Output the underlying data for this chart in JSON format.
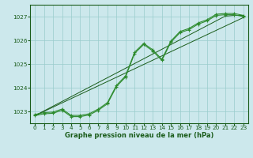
{
  "x": [
    0,
    1,
    2,
    3,
    4,
    5,
    6,
    7,
    8,
    9,
    10,
    11,
    12,
    13,
    14,
    15,
    16,
    17,
    18,
    19,
    20,
    21,
    22,
    23
  ],
  "wavy1": [
    1022.82,
    1022.9,
    1022.92,
    1023.05,
    1022.78,
    1022.78,
    1022.85,
    1023.05,
    1023.32,
    1024.05,
    1024.45,
    1025.45,
    1025.82,
    1025.55,
    1025.15,
    1025.92,
    1026.32,
    1026.45,
    1026.68,
    1026.82,
    1027.05,
    1027.08,
    1027.08,
    1027.0
  ],
  "straight1": [
    1022.82,
    1023.0,
    1023.18,
    1023.36,
    1023.54,
    1023.72,
    1023.9,
    1024.08,
    1024.26,
    1024.44,
    1024.62,
    1024.8,
    1024.98,
    1025.16,
    1025.34,
    1025.52,
    1025.7,
    1025.88,
    1026.06,
    1026.24,
    1026.42,
    1026.6,
    1026.78,
    1026.96
  ],
  "straight2": [
    1022.82,
    1023.02,
    1023.22,
    1023.42,
    1023.62,
    1023.82,
    1024.02,
    1024.22,
    1024.42,
    1024.62,
    1024.82,
    1025.02,
    1025.22,
    1025.42,
    1025.62,
    1025.82,
    1026.02,
    1026.22,
    1026.42,
    1026.62,
    1026.82,
    1027.02,
    1027.05,
    1027.05
  ],
  "bg_color": "#cce8ec",
  "grid_color": "#99cccc",
  "line_color_dark": "#1a5c1a",
  "line_color_bright": "#2d8b2d",
  "xlabel": "Graphe pression niveau de la mer (hPa)",
  "ylim": [
    1022.5,
    1027.5
  ],
  "xlim": [
    -0.5,
    23.5
  ],
  "yticks": [
    1023,
    1024,
    1025,
    1026,
    1027
  ],
  "xticks": [
    0,
    1,
    2,
    3,
    4,
    5,
    6,
    7,
    8,
    9,
    10,
    11,
    12,
    13,
    14,
    15,
    16,
    17,
    18,
    19,
    20,
    21,
    22,
    23
  ],
  "xlabel_fontsize": 6.0,
  "tick_fontsize": 5.2
}
